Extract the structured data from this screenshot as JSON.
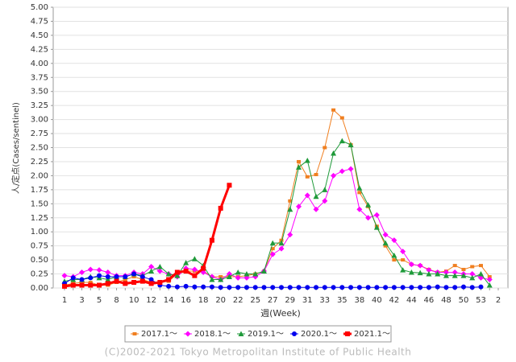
{
  "chart_data": {
    "type": "line",
    "x_label": "週(Week)",
    "y_label": "人/定点(Cases/sentinel)",
    "copyright": "(C)2002-2021 Tokyo Metropolitan Institute of Public Health",
    "categories": [
      "1",
      null,
      "3",
      null,
      "5",
      null,
      "8",
      null,
      "10",
      null,
      "12",
      null,
      "14",
      null,
      "16",
      null,
      "18",
      null,
      "20",
      null,
      "22",
      null,
      "25",
      null,
      "27",
      null,
      "29",
      null,
      "31",
      null,
      "33",
      null,
      "35",
      null,
      "38",
      null,
      "40",
      null,
      "42",
      null,
      "44",
      null,
      "46",
      null,
      "48",
      null,
      "50",
      null,
      "53",
      null,
      "2"
    ],
    "ylim": [
      0,
      5
    ],
    "yticks": [
      {
        "value": 0,
        "label": "0.00"
      },
      {
        "value": 0.25,
        "label": "0.25"
      },
      {
        "value": 0.5,
        "label": "0.50"
      },
      {
        "value": 0.75,
        "label": "0.75"
      },
      {
        "value": 1,
        "label": "1.00"
      },
      {
        "value": 1.25,
        "label": "1.25"
      },
      {
        "value": 1.5,
        "label": "1.50"
      },
      {
        "value": 1.75,
        "label": "1.75"
      },
      {
        "value": 2,
        "label": "2.00"
      },
      {
        "value": 2.25,
        "label": "2.25"
      },
      {
        "value": 2.5,
        "label": "2.50"
      },
      {
        "value": 2.75,
        "label": "2.75"
      },
      {
        "value": 3,
        "label": "3.00"
      },
      {
        "value": 3.25,
        "label": "3.25"
      },
      {
        "value": 3.5,
        "label": "3.50"
      },
      {
        "value": 3.75,
        "label": "3.75"
      },
      {
        "value": 4,
        "label": "4.00"
      },
      {
        "value": 4.25,
        "label": "4.25"
      },
      {
        "value": 4.5,
        "label": "4.50"
      },
      {
        "value": 4.75,
        "label": "4.75"
      },
      {
        "value": 5,
        "label": "5.00"
      }
    ],
    "grid": true,
    "legend": "bottom",
    "series": [
      {
        "name": "2017.1～",
        "color": "#f07f20",
        "marker": "square",
        "values": [
          0.05,
          0.08,
          0.1,
          0.1,
          0.05,
          0.05,
          0.1,
          0.15,
          0.2,
          0.15,
          0.1,
          0.1,
          0.12,
          0.25,
          0.3,
          0.3,
          0.3,
          0.2,
          0.2,
          0.2,
          0.2,
          0.22,
          0.25,
          0.3,
          0.7,
          0.85,
          1.55,
          2.25,
          1.98,
          2.02,
          2.5,
          3.17,
          3.03,
          2.55,
          1.7,
          1.45,
          1.1,
          0.75,
          0.5,
          0.5,
          0.42,
          0.4,
          0.33,
          0.28,
          0.3,
          0.4,
          0.33,
          0.38,
          0.4,
          0.2,
          null
        ]
      },
      {
        "name": "2018.1～",
        "color": "#ff00ff",
        "marker": "diamond",
        "values": [
          0.22,
          0.2,
          0.28,
          0.33,
          0.32,
          0.28,
          0.22,
          0.22,
          0.28,
          0.25,
          0.38,
          0.3,
          0.25,
          0.2,
          0.35,
          0.33,
          0.28,
          0.2,
          0.15,
          0.25,
          0.18,
          0.18,
          0.2,
          0.3,
          0.6,
          0.7,
          0.95,
          1.45,
          1.65,
          1.4,
          1.55,
          2.0,
          2.08,
          2.12,
          1.4,
          1.25,
          1.3,
          0.95,
          0.85,
          0.65,
          0.42,
          0.4,
          0.32,
          0.28,
          0.28,
          0.28,
          0.25,
          0.25,
          0.18,
          0.15,
          null
        ]
      },
      {
        "name": "2019.1～",
        "color": "#1f9a3a",
        "marker": "triangle",
        "values": [
          0.12,
          0.15,
          0.15,
          0.2,
          0.18,
          0.15,
          0.2,
          0.2,
          0.25,
          0.22,
          0.3,
          0.38,
          0.25,
          0.22,
          0.45,
          0.52,
          0.4,
          0.15,
          0.15,
          0.2,
          0.28,
          0.25,
          0.25,
          0.3,
          0.8,
          0.8,
          1.4,
          2.15,
          2.27,
          1.63,
          1.75,
          2.4,
          2.62,
          2.55,
          1.78,
          1.48,
          1.08,
          0.8,
          0.58,
          0.32,
          0.28,
          0.27,
          0.25,
          0.25,
          0.22,
          0.22,
          0.22,
          0.18,
          0.25,
          0.05,
          null
        ]
      },
      {
        "name": "2020.1～",
        "color": "#0000ee",
        "marker": "circle",
        "values": [
          0.08,
          0.18,
          0.15,
          0.18,
          0.22,
          0.2,
          0.2,
          0.2,
          0.25,
          0.2,
          0.15,
          0.05,
          0.03,
          0.02,
          0.03,
          0.02,
          0.02,
          0.02,
          0.01,
          0.01,
          0.01,
          0.01,
          0.01,
          0.01,
          0.01,
          0.01,
          0.01,
          0.01,
          0.01,
          0.01,
          0.01,
          0.01,
          0.01,
          0.01,
          0.01,
          0.01,
          0.01,
          0.01,
          0.01,
          0.01,
          0.01,
          0.01,
          0.01,
          0.02,
          0.01,
          0.01,
          0.02,
          0.01,
          0.02,
          null,
          null
        ]
      },
      {
        "name": "2021.1～",
        "color": "#ff0000",
        "marker": "bigsquare",
        "values": [
          0.03,
          0.05,
          0.05,
          0.05,
          0.05,
          0.08,
          0.12,
          0.08,
          0.1,
          0.12,
          0.08,
          0.1,
          0.15,
          0.28,
          0.3,
          0.22,
          0.35,
          0.85,
          1.42,
          1.83,
          null,
          null,
          null,
          null,
          null,
          null,
          null,
          null,
          null,
          null,
          null,
          null,
          null,
          null,
          null,
          null,
          null,
          null,
          null,
          null,
          null,
          null,
          null,
          null,
          null,
          null,
          null,
          null,
          null,
          null,
          null
        ]
      }
    ]
  }
}
